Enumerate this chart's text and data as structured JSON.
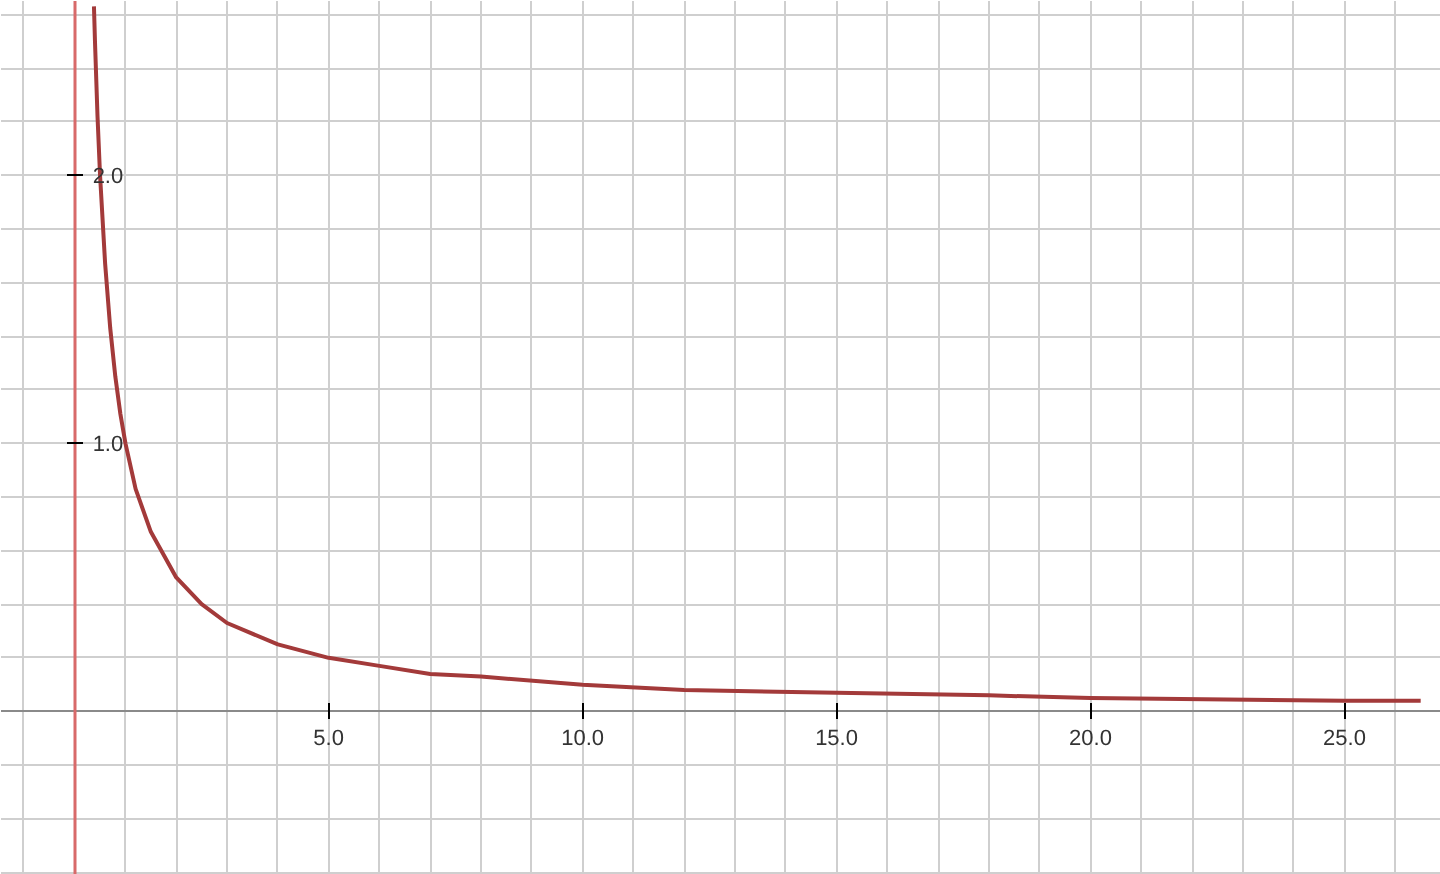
{
  "chart_data": {
    "type": "line",
    "x": [
      0.38,
      0.4,
      0.45,
      0.5,
      0.6,
      0.7,
      0.8,
      0.9,
      1,
      1.2,
      1.5,
      2,
      2.5,
      3,
      4,
      5,
      6,
      7,
      8,
      10,
      12,
      15,
      18,
      20,
      25,
      26.5
    ],
    "series": [
      {
        "color": "#a33a3a",
        "values": [
          2.63,
          2.5,
          2.22,
          2.0,
          1.67,
          1.43,
          1.25,
          1.11,
          1.0,
          0.83,
          0.67,
          0.5,
          0.4,
          0.33,
          0.25,
          0.2,
          0.17,
          0.14,
          0.13,
          0.1,
          0.08,
          0.07,
          0.06,
          0.05,
          0.04,
          0.04
        ]
      }
    ],
    "xlim": [
      -1.45,
      26.9
    ],
    "ylim": [
      -0.61,
      2.65
    ],
    "xticks": [
      {
        "value": -1,
        "label": null
      },
      {
        "value": 1,
        "label": null
      },
      {
        "value": 2,
        "label": null
      },
      {
        "value": 3,
        "label": null
      },
      {
        "value": 4,
        "label": null
      },
      {
        "value": 5,
        "label": "5.0"
      },
      {
        "value": 6,
        "label": null
      },
      {
        "value": 7,
        "label": null
      },
      {
        "value": 8,
        "label": null
      },
      {
        "value": 9,
        "label": null
      },
      {
        "value": 10,
        "label": "10.0"
      },
      {
        "value": 11,
        "label": null
      },
      {
        "value": 12,
        "label": null
      },
      {
        "value": 13,
        "label": null
      },
      {
        "value": 14,
        "label": null
      },
      {
        "value": 15,
        "label": "15.0"
      },
      {
        "value": 16,
        "label": null
      },
      {
        "value": 17,
        "label": null
      },
      {
        "value": 18,
        "label": null
      },
      {
        "value": 19,
        "label": null
      },
      {
        "value": 20,
        "label": "20.0"
      },
      {
        "value": 21,
        "label": null
      },
      {
        "value": 22,
        "label": null
      },
      {
        "value": 23,
        "label": null
      },
      {
        "value": 24,
        "label": null
      },
      {
        "value": 25,
        "label": "25.0"
      },
      {
        "value": 26,
        "label": null
      }
    ],
    "yticks": [
      {
        "value": -0.6,
        "label": null
      },
      {
        "value": -0.4,
        "label": null
      },
      {
        "value": -0.2,
        "label": null
      },
      {
        "value": 0.2,
        "label": null
      },
      {
        "value": 0.4,
        "label": null
      },
      {
        "value": 0.6,
        "label": null
      },
      {
        "value": 0.8,
        "label": null
      },
      {
        "value": 1,
        "label": "1.0"
      },
      {
        "value": 1.2,
        "label": null
      },
      {
        "value": 1.4,
        "label": null
      },
      {
        "value": 1.6,
        "label": null
      },
      {
        "value": 1.8,
        "label": null
      },
      {
        "value": 2,
        "label": "2.0"
      },
      {
        "value": 2.2,
        "label": null
      },
      {
        "value": 2.4,
        "label": null
      },
      {
        "value": 2.6,
        "label": null
      }
    ],
    "grid": true,
    "marker": "none",
    "line_style": "solid"
  }
}
